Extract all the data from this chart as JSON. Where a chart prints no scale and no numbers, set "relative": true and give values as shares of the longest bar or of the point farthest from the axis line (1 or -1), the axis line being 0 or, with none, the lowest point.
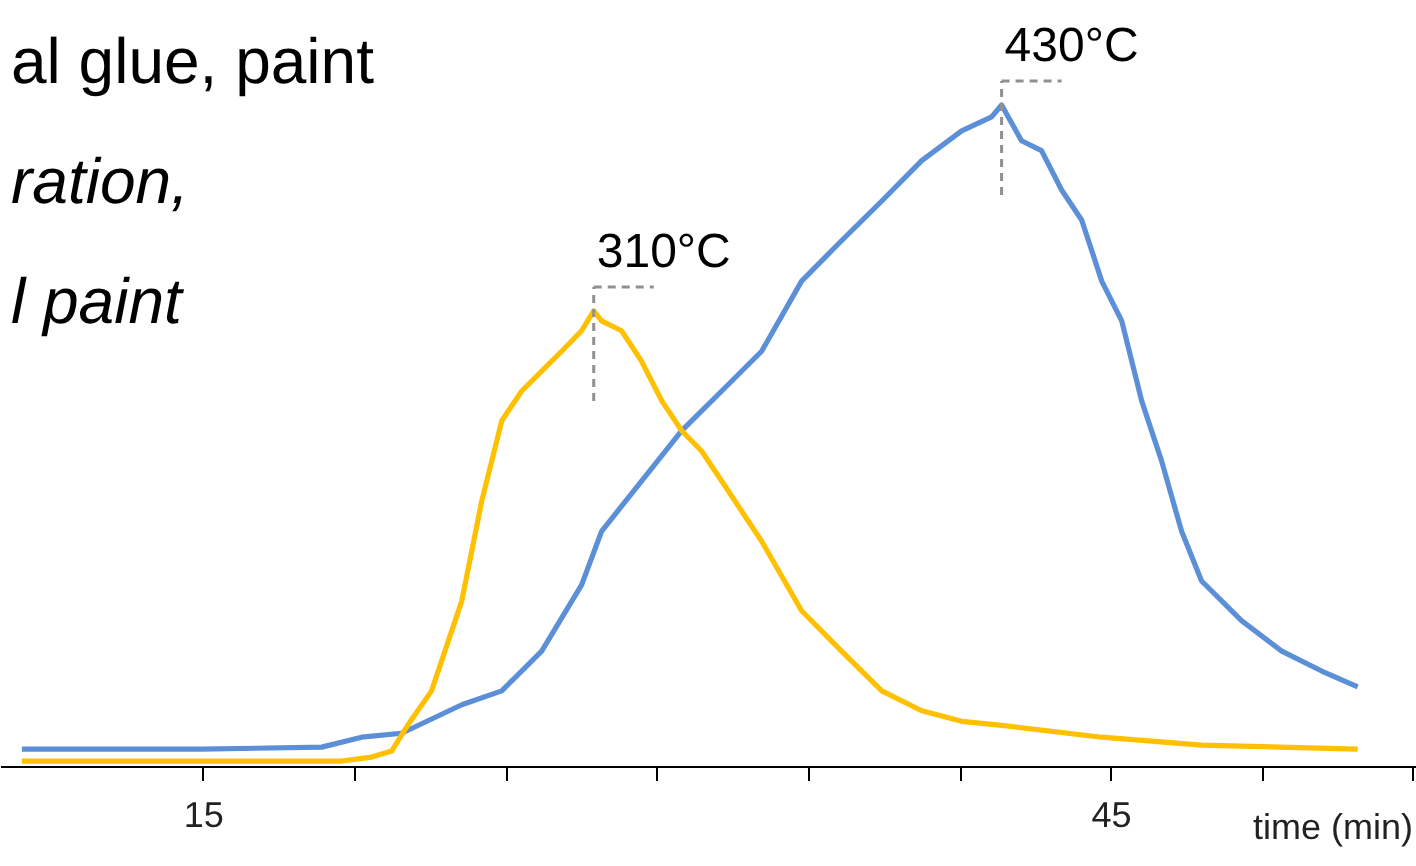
{
  "chart_data": {
    "type": "line",
    "relative": true,
    "xlabel": "time (min)",
    "xlim": [
      8.3,
      55.1
    ],
    "xticks": [
      15,
      {
        "value": 20,
        "label": null
      },
      {
        "value": 25,
        "label": null
      },
      {
        "value": 30,
        "label": null
      },
      {
        "value": 35,
        "label": null
      },
      {
        "value": 40,
        "label": null
      },
      45,
      {
        "value": 50,
        "label": null
      },
      {
        "value": 55,
        "label": null
      }
    ],
    "grid": false,
    "marker": "none",
    "line_style": "solid",
    "series": [
      {
        "color": "#5b8fd8",
        "x": [
          8.99,
          14.93,
          18.9,
          20.22,
          21.54,
          23.53,
          24.85,
          26.17,
          27.49,
          28.15,
          29.47,
          30.8,
          32.12,
          33.44,
          34.76,
          36.08,
          37.41,
          38.73,
          40.05,
          41.04,
          41.37,
          42.03,
          42.69,
          43.35,
          44.02,
          44.68,
          45.34,
          46.0,
          46.66,
          47.32,
          47.98,
          49.3,
          50.63,
          51.95,
          53.14
        ],
        "values": [
          0.027,
          0.027,
          0.03,
          0.045,
          0.051,
          0.094,
          0.115,
          0.175,
          0.275,
          0.356,
          0.432,
          0.508,
          0.568,
          0.628,
          0.734,
          0.795,
          0.855,
          0.916,
          0.961,
          0.982,
          1.0,
          0.946,
          0.931,
          0.872,
          0.826,
          0.734,
          0.674,
          0.553,
          0.462,
          0.356,
          0.281,
          0.221,
          0.175,
          0.145,
          0.121
        ]
      },
      {
        "color": "#ffc000",
        "x": [
          8.99,
          19.56,
          20.55,
          21.21,
          21.74,
          22.53,
          23.53,
          24.19,
          24.85,
          25.51,
          26.17,
          26.83,
          27.49,
          27.89,
          28.15,
          28.81,
          29.47,
          30.14,
          30.8,
          31.46,
          32.12,
          33.44,
          34.76,
          36.08,
          37.41,
          38.73,
          40.05,
          41.37,
          44.68,
          47.98,
          53.14
        ],
        "values": [
          0.009,
          0.009,
          0.015,
          0.024,
          0.063,
          0.115,
          0.251,
          0.402,
          0.523,
          0.568,
          0.598,
          0.628,
          0.659,
          0.689,
          0.674,
          0.659,
          0.613,
          0.553,
          0.508,
          0.477,
          0.432,
          0.341,
          0.236,
          0.175,
          0.115,
          0.085,
          0.069,
          0.063,
          0.045,
          0.033,
          0.027
        ]
      }
    ],
    "annotations": [
      "al glue, paint",
      "ration,",
      "l paint",
      {
        "text": "310°C",
        "x": 27.89,
        "y": 0.689
      },
      {
        "text": "430°C",
        "x": 41.37,
        "y": 1.0
      }
    ]
  }
}
